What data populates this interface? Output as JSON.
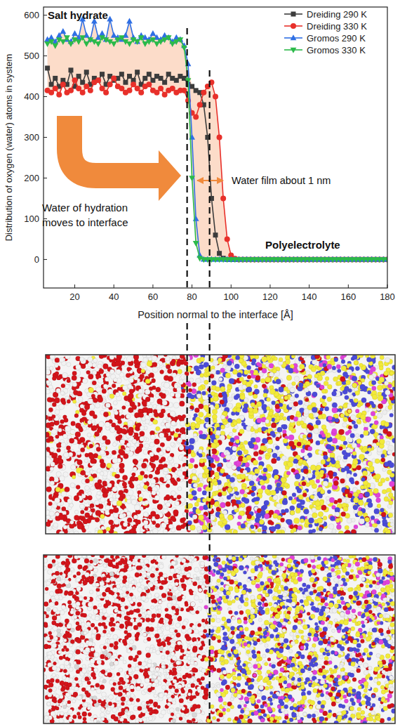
{
  "chart_data": {
    "type": "line",
    "x_label": "Position normal to the interface [Å]",
    "y_label": "Distribution of oxygen (water) atoms in system",
    "annotations": [
      "Salt hydrate",
      "Polyelectrolyte",
      "Water of hydration moves to interface",
      "Water film about 1 nm"
    ],
    "xlim": [
      4,
      180
    ],
    "ylim": [
      -70,
      620
    ],
    "xticks": [
      20,
      40,
      60,
      80,
      100,
      120,
      140,
      160,
      180
    ],
    "yticks": [
      0,
      100,
      200,
      300,
      400,
      500,
      600
    ],
    "grid": false,
    "legend": "upper right",
    "reference_lines": [
      77.5,
      89
    ],
    "x": [
      6,
      8,
      10,
      12,
      14,
      16,
      18,
      20,
      22,
      24,
      26,
      28,
      30,
      32,
      34,
      36,
      38,
      40,
      42,
      44,
      46,
      48,
      50,
      52,
      54,
      56,
      58,
      60,
      62,
      64,
      66,
      68,
      70,
      72,
      74,
      76,
      78,
      80,
      82,
      84,
      86,
      88,
      90,
      92,
      94,
      96,
      98,
      100,
      102,
      104,
      106,
      108,
      110,
      112,
      114,
      116,
      118,
      120,
      122,
      124,
      126,
      128,
      130,
      132,
      134,
      136,
      138,
      140,
      142,
      144,
      146,
      148,
      150,
      152,
      154,
      156,
      158,
      160,
      162,
      164,
      166,
      168,
      170,
      172,
      174,
      176,
      178,
      180
    ],
    "series": [
      {
        "name": "Dreiding 290 K",
        "color": "#3c3c3c",
        "marker": "square",
        "line_style": "solid",
        "values": [
          470,
          430,
          445,
          425,
          440,
          430,
          465,
          425,
          450,
          435,
          460,
          430,
          445,
          440,
          455,
          430,
          450,
          440,
          445,
          455,
          435,
          450,
          440,
          460,
          430,
          445,
          455,
          440,
          450,
          445,
          435,
          455,
          445,
          440,
          450,
          445,
          430,
          425,
          415,
          410,
          380,
          300,
          150,
          60,
          15,
          3,
          0,
          0,
          0,
          0,
          0,
          0,
          0,
          0,
          0,
          0,
          0,
          0,
          0,
          0,
          0,
          0,
          0,
          0,
          0,
          0,
          0,
          0,
          0,
          0,
          0,
          0,
          0,
          0,
          0,
          0,
          0,
          0,
          0,
          0,
          0,
          0,
          0,
          0,
          0,
          0,
          0,
          0
        ]
      },
      {
        "name": "Dreiding 330 K",
        "color": "#e8302a",
        "marker": "circle",
        "line_style": "solid",
        "values": [
          415,
          410,
          420,
          405,
          430,
          410,
          415,
          440,
          420,
          410,
          425,
          415,
          435,
          440,
          420,
          410,
          430,
          445,
          425,
          420,
          410,
          415,
          430,
          420,
          410,
          425,
          430,
          415,
          410,
          420,
          405,
          415,
          420,
          410,
          415,
          415,
          390,
          360,
          350,
          380,
          410,
          425,
          435,
          400,
          300,
          150,
          50,
          10,
          2,
          0,
          0,
          0,
          0,
          0,
          0,
          0,
          0,
          0,
          0,
          0,
          0,
          0,
          0,
          0,
          0,
          0,
          0,
          0,
          0,
          0,
          0,
          0,
          0,
          0,
          0,
          0,
          0,
          0,
          0,
          0,
          0,
          0,
          0,
          0,
          0,
          0,
          0,
          0
        ]
      },
      {
        "name": "Gromos 290 K",
        "color": "#2f6fe4",
        "marker": "triangle-up",
        "line_style": "solid",
        "values": [
          540,
          545,
          535,
          550,
          560,
          540,
          535,
          555,
          545,
          590,
          550,
          540,
          585,
          545,
          555,
          540,
          590,
          550,
          545,
          540,
          550,
          585,
          545,
          535,
          550,
          545,
          540,
          555,
          545,
          540,
          550,
          545,
          535,
          545,
          540,
          525,
          480,
          300,
          100,
          10,
          0,
          0,
          0,
          0,
          0,
          0,
          0,
          0,
          0,
          0,
          0,
          0,
          0,
          0,
          0,
          0,
          0,
          0,
          0,
          0,
          0,
          0,
          0,
          0,
          0,
          0,
          0,
          0,
          0,
          0,
          0,
          0,
          0,
          0,
          0,
          0,
          0,
          0,
          0,
          0,
          0,
          0,
          0,
          0,
          0,
          0,
          0,
          0
        ]
      },
      {
        "name": "Gromos 330 K",
        "color": "#2cba4a",
        "marker": "triangle-down",
        "line_style": "solid",
        "values": [
          530,
          535,
          525,
          540,
          535,
          545,
          530,
          540,
          535,
          545,
          530,
          540,
          535,
          530,
          545,
          540,
          535,
          530,
          540,
          545,
          535,
          530,
          540,
          535,
          545,
          530,
          535,
          540,
          530,
          535,
          540,
          545,
          530,
          535,
          540,
          520,
          440,
          200,
          40,
          3,
          0,
          0,
          0,
          0,
          0,
          0,
          0,
          0,
          0,
          0,
          0,
          0,
          0,
          0,
          0,
          0,
          0,
          0,
          0,
          0,
          0,
          0,
          0,
          0,
          0,
          0,
          0,
          0,
          0,
          0,
          0,
          0,
          0,
          0,
          0,
          0,
          0,
          0,
          0,
          0,
          0,
          0,
          0,
          0,
          0,
          0,
          0,
          0
        ]
      }
    ]
  }
}
